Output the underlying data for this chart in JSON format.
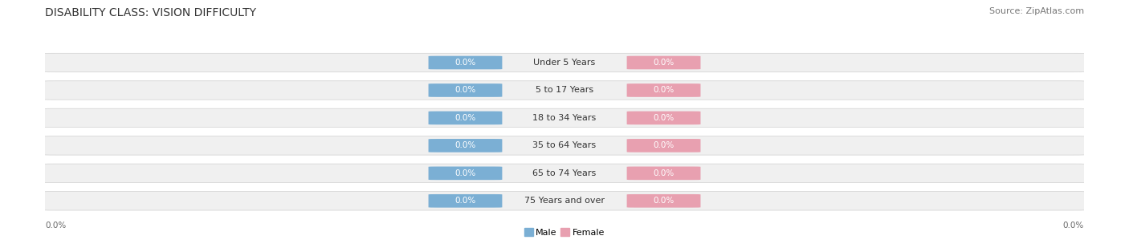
{
  "title": "DISABILITY CLASS: VISION DIFFICULTY",
  "source": "Source: ZipAtlas.com",
  "categories": [
    "Under 5 Years",
    "5 to 17 Years",
    "18 to 34 Years",
    "35 to 64 Years",
    "65 to 74 Years",
    "75 Years and over"
  ],
  "male_values": [
    0.0,
    0.0,
    0.0,
    0.0,
    0.0,
    0.0
  ],
  "female_values": [
    0.0,
    0.0,
    0.0,
    0.0,
    0.0,
    0.0
  ],
  "male_color": "#7bafd4",
  "female_color": "#e8a0b0",
  "row_fill_color": "#f0f0f0",
  "row_edge_color": "#d0d0d0",
  "title_fontsize": 10,
  "source_fontsize": 8,
  "cat_fontsize": 8,
  "val_fontsize": 7.5,
  "axis_val": "0.0%",
  "background_color": "#ffffff",
  "legend_male": "Male",
  "legend_female": "Female"
}
